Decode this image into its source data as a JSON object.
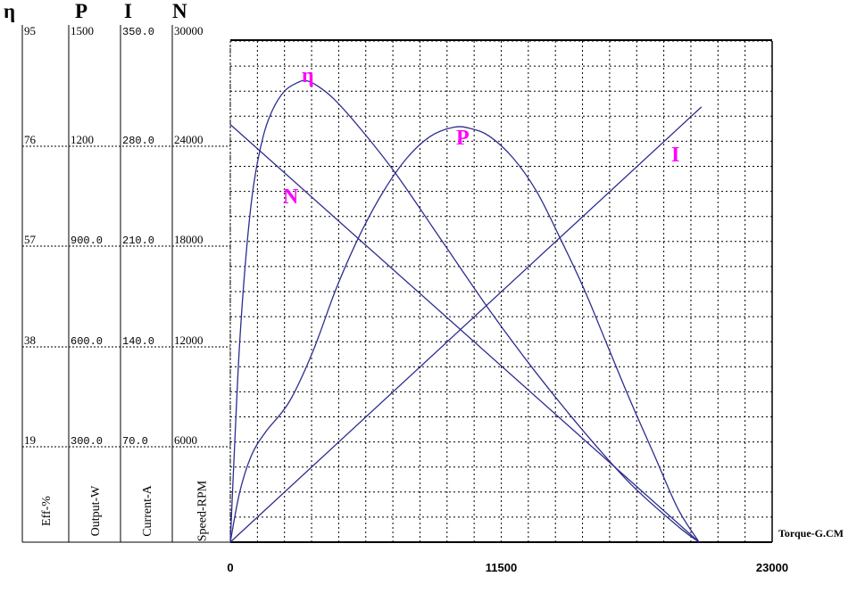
{
  "chart_data": {
    "type": "line",
    "x": {
      "label": "Torque-G.CM",
      "range": [
        0,
        23000
      ],
      "ticks": [
        "0",
        "11500",
        "23000"
      ]
    },
    "y_axes": [
      {
        "symbol": "η",
        "title": "Eff-%",
        "range": [
          0,
          95
        ],
        "ticks": [
          "95",
          "76",
          "57",
          "38",
          "19"
        ]
      },
      {
        "symbol": "P",
        "title": "Output-W",
        "range": [
          0,
          1500
        ],
        "ticks": [
          "1500",
          "1200",
          "900.0",
          "600.0",
          "300.0"
        ]
      },
      {
        "symbol": "I",
        "title": "Current-A",
        "range": [
          0,
          350
        ],
        "ticks": [
          "350.0",
          "280.0",
          "210.0",
          "140.0",
          "70.0"
        ]
      },
      {
        "symbol": "N",
        "title": "Speed-RPM",
        "range": [
          0,
          30000
        ],
        "ticks": [
          "30000",
          "24000",
          "18000",
          "12000",
          "6000"
        ]
      }
    ],
    "grid": true,
    "series": [
      {
        "name": "η",
        "axis": "Eff-%",
        "color": "#2d2d8f",
        "points": [
          [
            0,
            0
          ],
          [
            200,
            20
          ],
          [
            400,
            38
          ],
          [
            700,
            56
          ],
          [
            1000,
            68
          ],
          [
            1400,
            77
          ],
          [
            1800,
            82
          ],
          [
            2300,
            85.5
          ],
          [
            2800,
            87
          ],
          [
            3200,
            87.5
          ],
          [
            3700,
            86.5
          ],
          [
            4400,
            84
          ],
          [
            5500,
            78.5
          ],
          [
            7000,
            70
          ],
          [
            9000,
            57
          ],
          [
            11000,
            44
          ],
          [
            13000,
            32
          ],
          [
            15000,
            21
          ],
          [
            17000,
            11
          ],
          [
            19000,
            3
          ],
          [
            19900,
            0
          ]
        ]
      },
      {
        "name": "P",
        "axis": "Output-W",
        "color": "#2d2d8f",
        "points": [
          [
            0,
            0
          ],
          [
            400,
            150
          ],
          [
            900,
            260
          ],
          [
            1500,
            330
          ],
          [
            2500,
            420
          ],
          [
            3500,
            570
          ],
          [
            4500,
            760
          ],
          [
            5500,
            920
          ],
          [
            6500,
            1050
          ],
          [
            7500,
            1150
          ],
          [
            8500,
            1215
          ],
          [
            9500,
            1242
          ],
          [
            10200,
            1238
          ],
          [
            11000,
            1215
          ],
          [
            12000,
            1150
          ],
          [
            13000,
            1050
          ],
          [
            14000,
            910
          ],
          [
            15000,
            760
          ],
          [
            16000,
            590
          ],
          [
            17000,
            420
          ],
          [
            18000,
            260
          ],
          [
            19000,
            100
          ],
          [
            19900,
            0
          ]
        ]
      },
      {
        "name": "I",
        "axis": "Current-A",
        "color": "#2d2d8f",
        "points": [
          [
            0,
            0
          ],
          [
            20000,
            304
          ]
        ]
      },
      {
        "name": "N",
        "axis": "Speed-RPM",
        "color": "#2d2d8f",
        "points": [
          [
            0,
            25000
          ],
          [
            19900,
            0
          ]
        ]
      }
    ],
    "curve_labels": [
      "η",
      "P",
      "I",
      "N"
    ],
    "label_color": "#ff00ff"
  }
}
